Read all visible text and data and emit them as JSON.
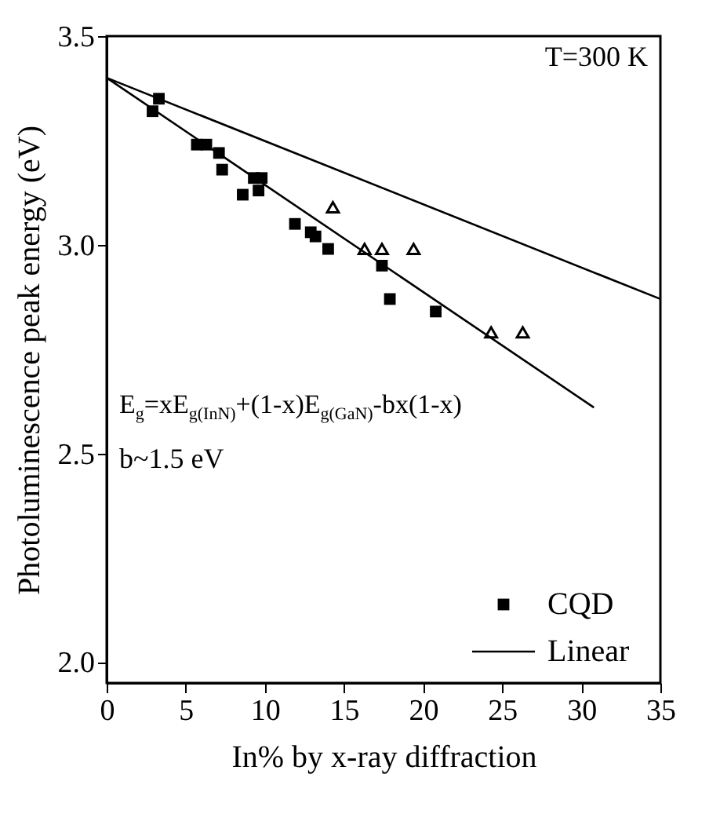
{
  "chart_data": {
    "type": "scatter",
    "xlabel": "In% by x-ray diffraction",
    "ylabel": "Photoluminescence peak energy (eV)",
    "xlim": [
      0,
      35
    ],
    "xticks": [
      0,
      5,
      10,
      15,
      20,
      25,
      30,
      35
    ],
    "ylim": [
      1.95,
      3.5
    ],
    "yticks": [
      {
        "value": 2,
        "label": "2.0"
      },
      2.5,
      {
        "value": 3,
        "label": "3.0"
      },
      3.5
    ],
    "annotations": [
      "T=300 K",
      "E$_{g}$=xE$_{g(InN)}$+(1-x)E$_{g(GaN)}$-bx(1-x)",
      "b~1.5 eV"
    ],
    "legend": "bottom right",
    "grid": false,
    "series": [
      {
        "name": "CQD",
        "marker": "square",
        "color": "#000000",
        "x": [
          2.9,
          3.3,
          5.7,
          6.3,
          7.1,
          7.3,
          8.6,
          9.3,
          9.8,
          9.6,
          11.9,
          12.9,
          13.2,
          14.0,
          17.4,
          17.9,
          20.8
        ],
        "values": [
          3.32,
          3.35,
          3.24,
          3.24,
          3.22,
          3.18,
          3.12,
          3.16,
          3.16,
          3.13,
          3.05,
          3.03,
          3.02,
          2.99,
          2.95,
          2.87,
          2.84
        ]
      },
      {
        "marker": "triangle",
        "color": "#000000",
        "x": [
          14.3,
          16.3,
          17.4,
          19.4,
          24.3,
          26.3
        ],
        "values": [
          3.09,
          2.99,
          2.99,
          2.99,
          2.79,
          2.79
        ]
      },
      {
        "name": "Linear",
        "type": "line",
        "color": "#000000",
        "x": [
          0,
          35
        ],
        "values": [
          3.4,
          2.87
        ]
      },
      {
        "type": "line",
        "color": "#000000",
        "x": [
          0,
          30.8
        ],
        "values": [
          3.4,
          2.61
        ]
      }
    ]
  }
}
